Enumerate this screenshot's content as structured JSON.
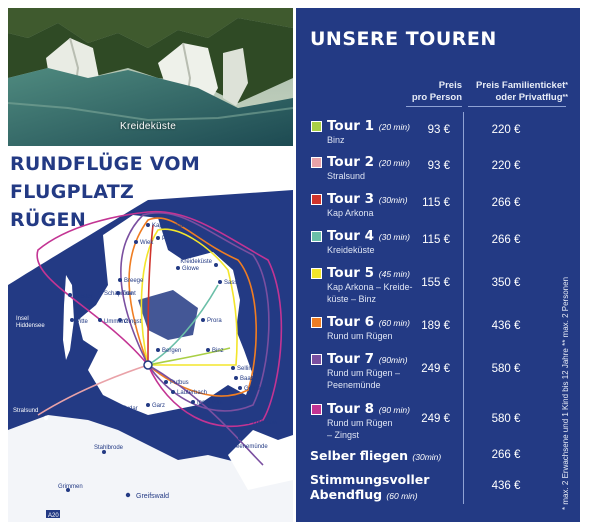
{
  "photo": {
    "caption": "Kreideküste"
  },
  "heading": {
    "line1": "RUNDFLÜGE VOM",
    "line2": "FLUGPLATZ",
    "line3": "RÜGEN"
  },
  "map": {
    "places": [
      "Kap Arkona",
      "Wiek",
      "Putgarten",
      "Glowe",
      "Schaprode",
      "Breege",
      "Trent",
      "Insel Hiddensee",
      "Kloster",
      "Ummanz",
      "Vitte",
      "Gingst",
      "Bergen",
      "Sassnitz",
      "Kreideküste",
      "Prora",
      "Binz",
      "Sellin",
      "Baabe",
      "Göhren",
      "Putbus",
      "Lauterbach",
      "Garz",
      "Insel Vilm",
      "Thiessow",
      "Zudar",
      "Stralsund",
      "Greifswald",
      "Grimmen",
      "Stahlbrode",
      "Peenemünde",
      "A20"
    ],
    "colors": {
      "sea": "#233a84",
      "land": "#ffffff",
      "route_green": "#7dc242",
      "route_yellow": "#f3e52b",
      "route_purple": "#7a4fa0",
      "route_magenta": "#c33493",
      "route_orange": "#ef7d22",
      "route_red": "#d0342c",
      "route_pink": "#e9a2a8",
      "route_teal": "#6bbfa8"
    }
  },
  "panel": {
    "title": "UNSERE TOUREN",
    "col_price": "Preis pro Person",
    "col_family": "Preis Familienticket* oder Privatflug**",
    "col_family_line1": "Preis Familienticket",
    "col_family_sup1": "*",
    "col_family_line2": "oder Privatflug",
    "col_family_sup2": "**",
    "col_price_line1": "Preis",
    "col_price_line2": "pro Person",
    "note": "* max. 2 Erwachsene und 1 Kind bis 12 Jahre   ** max. 2 Personen"
  },
  "tours": [
    {
      "name": "Tour 1",
      "duration": "(20 min)",
      "dest1": "Binz",
      "dest2": "",
      "dest3": "",
      "price": "93 €",
      "family": "220 €",
      "color": "#a9cf45"
    },
    {
      "name": "Tour 2",
      "duration": "(20 min)",
      "dest1": "Stralsund",
      "dest2": "",
      "dest3": "",
      "price": "93 €",
      "family": "220 €",
      "color": "#e9a2a8"
    },
    {
      "name": "Tour 3",
      "duration": "(30min)",
      "dest1": "Kap Arkona",
      "dest2": "",
      "dest3": "",
      "price": "115 €",
      "family": "266 €",
      "color": "#d0342c"
    },
    {
      "name": "Tour 4",
      "duration": "(30 min)",
      "dest1": "Kreideküste",
      "dest2": "",
      "dest3": "",
      "price": "115 €",
      "family": "266 €",
      "color": "#6bbfa8"
    },
    {
      "name": "Tour 5",
      "duration": "(45 min)",
      "dest1": "Kap Arkona – Kreide-",
      "dest2": "küste – Binz",
      "dest3": "",
      "price": "155 €",
      "family": "350 €",
      "color": "#f3e52b"
    },
    {
      "name": "Tour 6",
      "duration": "(60 min)",
      "dest1": "Rund um Rügen",
      "dest2": "",
      "dest3": "",
      "price": "189 €",
      "family": "436 €",
      "color": "#ef7d22"
    },
    {
      "name": "Tour 7",
      "duration": "(90min)",
      "dest1": "Rund um Rügen –",
      "dest2": "Peenemünde",
      "dest3": "",
      "price": "249 €",
      "family": "580 €",
      "color": "#7a4fa0"
    },
    {
      "name": "Tour 8",
      "duration": "(90 min)",
      "dest1": "Rund um Rügen",
      "dest2": "– Zingst",
      "dest3": "",
      "price": "249 €",
      "family": "580 €",
      "color": "#c33493"
    }
  ],
  "specials": [
    {
      "name1": "Selber fliegen",
      "name2": "",
      "duration": "(30min)",
      "family": "266 €"
    },
    {
      "name1": "Stimmungsvoller",
      "name2": "Abendflug",
      "duration": "(60 min)",
      "family": "436 €"
    }
  ]
}
